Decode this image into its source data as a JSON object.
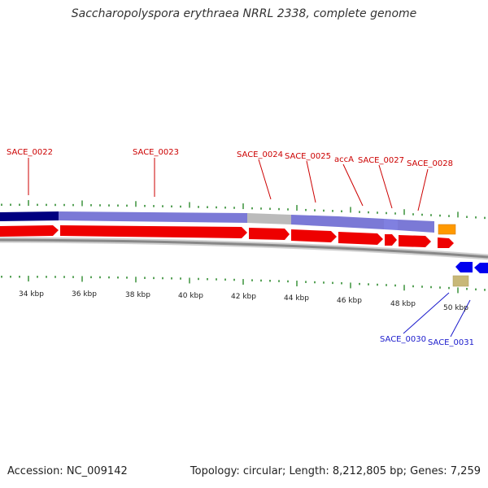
{
  "title": "Saccharopolyspora erythraea NRRL 2338, complete genome",
  "footer": {
    "accession": "Accession: NC_009142",
    "summary": "Topology: circular; Length: 8,212,805 bp; Genes: 7,259"
  },
  "colors": {
    "cds_forward": "#ee0000",
    "highlight_dark": "#000080",
    "highlight_light": "#7777dd",
    "gray_segment": "#bbbbbb",
    "orange_gene": "#ff9900",
    "blue_gene": "#0000ee",
    "khaki_gene": "#c8b878",
    "tick_green": "#2e8b2e",
    "label_red": "#cc0000",
    "label_blue": "#1a1acc"
  },
  "gene_labels_top": [
    "SACE_0022",
    "SACE_0023",
    "SACE_0024",
    "SACE_0025",
    "accA",
    "SACE_0027",
    "SACE_0028"
  ],
  "gene_labels_bottom": [
    "SACE_0030",
    "SACE_0031"
  ],
  "kbp_ticks": [
    "34 kbp",
    "36 kbp",
    "38 kbp",
    "40 kbp",
    "42 kbp",
    "44 kbp",
    "46 kbp",
    "48 kbp",
    "50 kbp"
  ]
}
